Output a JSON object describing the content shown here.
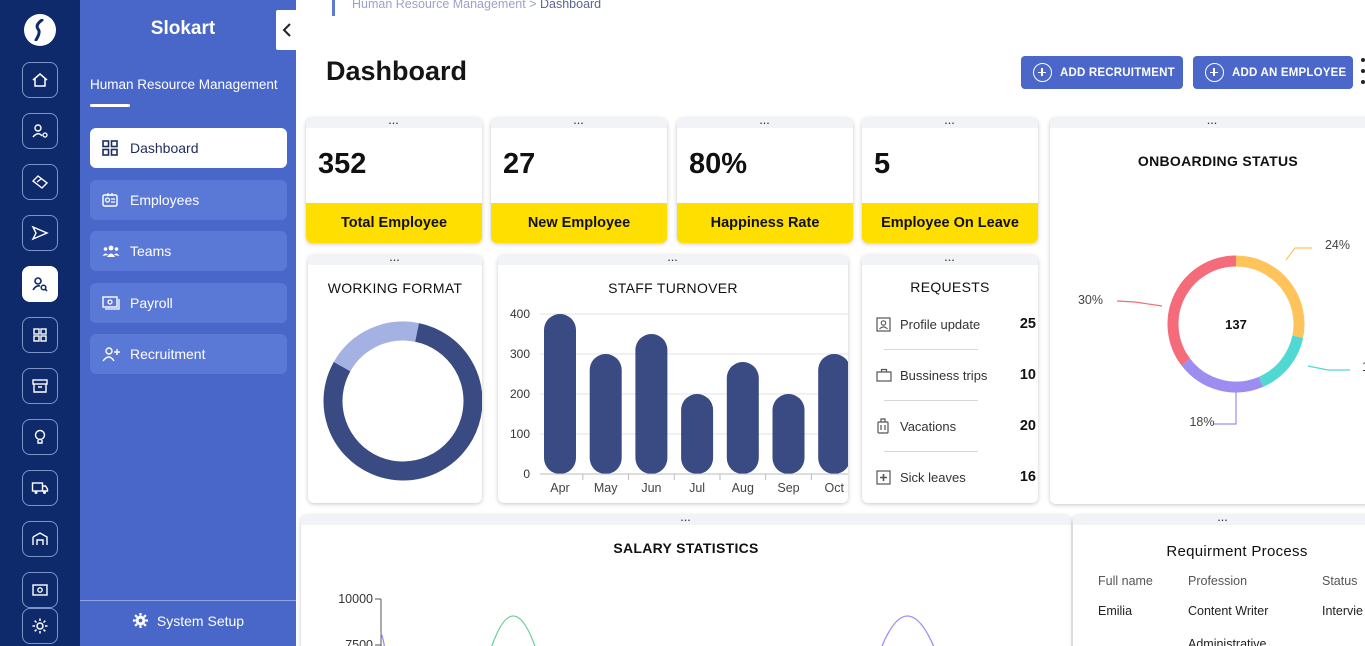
{
  "app": {
    "name": "Slokart",
    "module": "Human Resource Management"
  },
  "breadcrumb": {
    "parent": "Human Resource Management",
    "separator": ">",
    "current": "Dashboard"
  },
  "page": {
    "title": "Dashboard"
  },
  "actions": {
    "add_recruitment": "ADD RECRUITMENT",
    "add_employee": "ADD AN EMPLOYEE"
  },
  "rail_icons": [
    "home-icon",
    "people-settings-icon",
    "handshake-icon",
    "send-icon",
    "user-search-icon",
    "grid-icon",
    "archive-icon",
    "lightbulb-icon",
    "truck-icon",
    "warehouse-icon",
    "cash-icon",
    "settings-icon"
  ],
  "sidebar": {
    "items": [
      {
        "label": "Dashboard",
        "icon": "grid-icon"
      },
      {
        "label": "Employees",
        "icon": "id-badge-icon"
      },
      {
        "label": "Teams",
        "icon": "team-icon"
      },
      {
        "label": "Payroll",
        "icon": "payroll-icon"
      },
      {
        "label": "Recruitment",
        "icon": "user-plus-icon"
      }
    ],
    "footer": "System Setup"
  },
  "stats": [
    {
      "value": "352",
      "label": "Total Employee"
    },
    {
      "value": "27",
      "label": "New Employee"
    },
    {
      "value": "80%",
      "label": "Happiness Rate"
    },
    {
      "value": "5",
      "label": "Employee On Leave"
    }
  ],
  "working_format": {
    "title": "WORKING FORMAT"
  },
  "staff_turnover": {
    "title": "STAFF TURNOVER"
  },
  "onboarding": {
    "title": "ONBOARDING STATUS",
    "center": "137",
    "labels": [
      "24%",
      "30%",
      "18%",
      "1"
    ]
  },
  "requests": {
    "title": "REQUESTS",
    "items": [
      {
        "label": "Profile update",
        "value": "25",
        "icon": "profile-icon"
      },
      {
        "label": "Bussiness trips",
        "value": "10",
        "icon": "briefcase-icon"
      },
      {
        "label": "Vacations",
        "value": "20",
        "icon": "luggage-icon"
      },
      {
        "label": "Sick leaves",
        "value": "16",
        "icon": "medical-icon"
      }
    ]
  },
  "salary": {
    "title": "SALARY STATISTICS",
    "ticks": [
      "10000",
      "7500"
    ]
  },
  "requirement": {
    "title": "Requirment Process",
    "headers": [
      "Full name",
      "Profession",
      "Status"
    ],
    "rows": [
      [
        "Emilia",
        "Content Writer",
        "Intervie"
      ],
      [
        "",
        "Administrative",
        ""
      ]
    ]
  },
  "chart_data": [
    {
      "type": "pie",
      "title": "WORKING FORMAT",
      "slices": [
        {
          "value": 80,
          "color": "#3a4a82"
        },
        {
          "value": 20,
          "color": "#a3b2e3"
        }
      ]
    },
    {
      "type": "bar",
      "title": "STAFF TURNOVER",
      "categories": [
        "Apr",
        "May",
        "Jun",
        "Jul",
        "Aug",
        "Sep",
        "Oct"
      ],
      "values": [
        400,
        300,
        350,
        200,
        280,
        200,
        300
      ],
      "ylim": [
        0,
        400
      ],
      "yticks": [
        0,
        100,
        200,
        300,
        400
      ],
      "color": "#3a4a82"
    },
    {
      "type": "pie",
      "title": "ONBOARDING STATUS",
      "center_value": "137",
      "slices": [
        {
          "value": 24,
          "label": "24%",
          "color": "#ffc35c"
        },
        {
          "value": 13,
          "label": "1",
          "color": "#4fd9d2"
        },
        {
          "value": 18,
          "label": "18%",
          "color": "#9e8df0"
        },
        {
          "value": 30,
          "label": "30%",
          "color": "#f46b7a"
        }
      ]
    }
  ]
}
